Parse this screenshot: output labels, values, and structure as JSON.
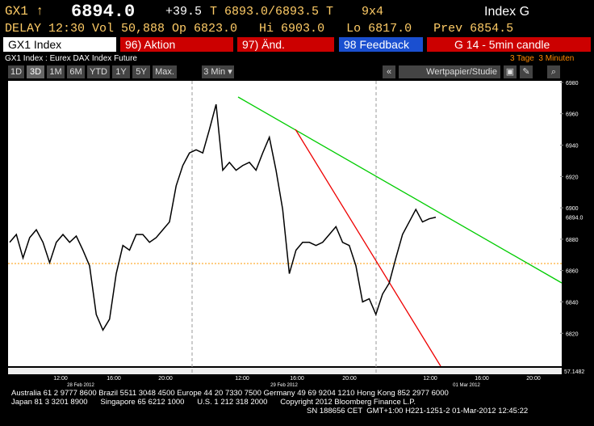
{
  "header": {
    "ticker": "GX1 ↑",
    "last": "6894.0",
    "change": "+39.5",
    "quote": "T 6893.0/6893.5 T",
    "size": "9x4",
    "asset": "Index G",
    "stats": "DELAY 12:30 Vol 50,888 Op 6823.0   Hi 6903.0   Lo 6817.0   Prev 6854.5"
  },
  "tabs": [
    "GX1 Index",
    "96) Aktion",
    "97) Änd.",
    "98 Feedback",
    "G 14 - 5min candle"
  ],
  "subheader": {
    "security": "GX1 Index : Eurex DAX Index Future",
    "range": "3 Tage  3 Minuten"
  },
  "toolbar": {
    "periods": [
      "1D",
      "3D",
      "1M",
      "6M",
      "YTD",
      "1Y",
      "5Y",
      "Max."
    ],
    "interval": "3 Min ▾",
    "back": "«",
    "study": "Wertpapier/Studie"
  },
  "chart_data": {
    "type": "line",
    "color": "#000000",
    "values": [
      6878,
      6883,
      6868,
      6881,
      6886,
      6878,
      6865,
      6878,
      6883,
      6878,
      6882,
      6873,
      6863,
      6832,
      6822,
      6829,
      6858,
      6876,
      6873,
      6883,
      6883,
      6878,
      6881,
      6886,
      6891,
      6914,
      6927,
      6935,
      6937,
      6935,
      6950,
      6966,
      6924,
      6929,
      6924,
      6927,
      6929,
      6924,
      6935,
      6945,
      6924,
      6899,
      6858,
      6873,
      6878,
      6878,
      6876,
      6878,
      6883,
      6888,
      6878,
      6876,
      6863,
      6840,
      6842,
      6832,
      6845,
      6852,
      6868,
      6883,
      6891,
      6899,
      6891,
      6893,
      6894
    ],
    "ylim": [
      6799,
      6981
    ],
    "yticks": [
      6820,
      6840,
      6860,
      6880,
      6900,
      6920,
      6940,
      6960,
      6980
    ],
    "last_label": "6894.0",
    "lower_label": "57.1482",
    "xtick_labels": [
      "12:00",
      "16:00",
      "20:00",
      "12:00",
      "16:00",
      "20:00",
      "12:00",
      "16:00",
      "20:00"
    ],
    "date_labels": [
      "28 Feb 2012",
      "29 Feb 2012",
      "01 Mar 2012"
    ]
  },
  "footer": [
    "Australia 61 2 9777 8600 Brazil 5511 3048 4500 Europe 44 20 7330 7500 Germany 49 69 9204 1210 Hong Kong 852 2977 6000",
    "Japan 81 3 3201 8900      Singapore 65 6212 1000      U.S. 1 212 318 2000      Copyright 2012 Bloomberg Finance L.P.",
    "SN 188656 CET  GMT+1:00 H221-1251-2 01-Mar-2012 12:45:22"
  ]
}
